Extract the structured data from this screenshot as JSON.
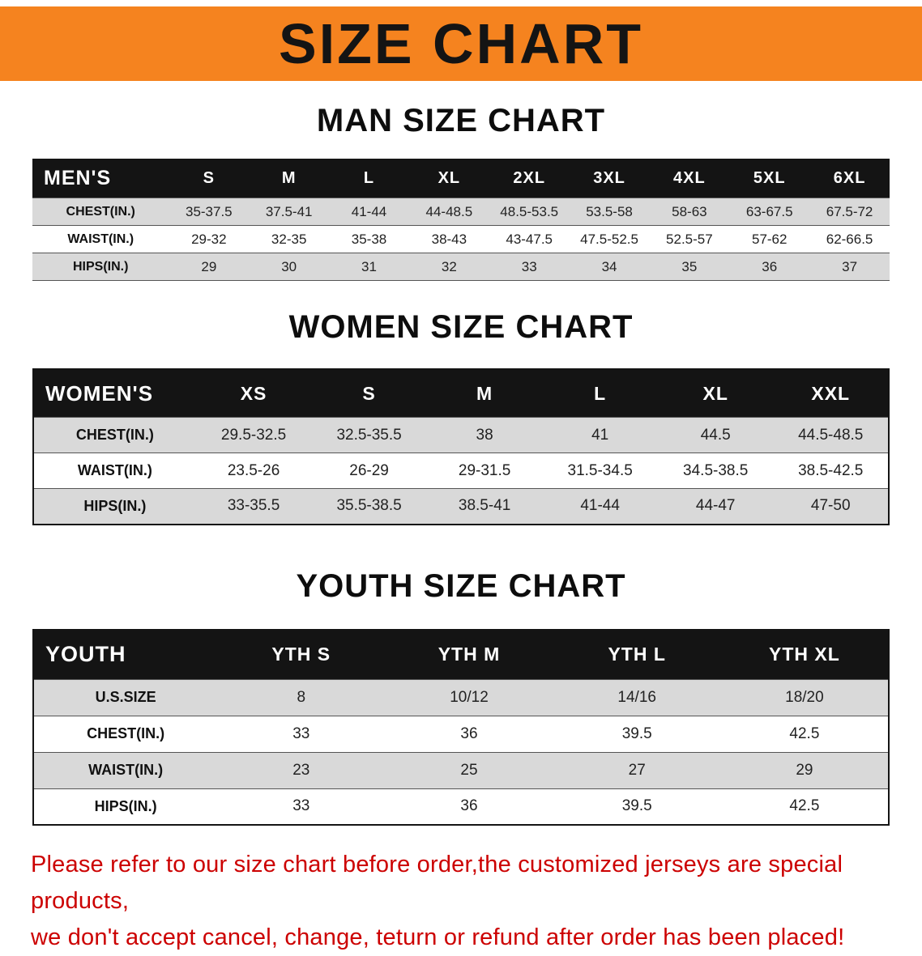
{
  "banner": {
    "title": "SIZE CHART"
  },
  "colors": {
    "banner_bg": "#f5831f",
    "note_red": "#cc0000",
    "header_bg": "#141414",
    "row_shade": "#d9d9d9"
  },
  "sections": {
    "men": {
      "heading": "MAN SIZE CHART",
      "table": {
        "header": [
          "MEN'S",
          "S",
          "M",
          "L",
          "XL",
          "2XL",
          "3XL",
          "4XL",
          "5XL",
          "6XL"
        ],
        "rows": [
          [
            "CHEST(IN.)",
            "35-37.5",
            "37.5-41",
            "41-44",
            "44-48.5",
            "48.5-53.5",
            "53.5-58",
            "58-63",
            "63-67.5",
            "67.5-72"
          ],
          [
            "WAIST(IN.)",
            "29-32",
            "32-35",
            "35-38",
            "38-43",
            "43-47.5",
            "47.5-52.5",
            "52.5-57",
            "57-62",
            "62-66.5"
          ],
          [
            "HIPS(IN.)",
            "29",
            "30",
            "31",
            "32",
            "33",
            "34",
            "35",
            "36",
            "37"
          ]
        ]
      }
    },
    "women": {
      "heading": "WOMEN SIZE CHART",
      "table": {
        "header": [
          "WOMEN'S",
          "XS",
          "S",
          "M",
          "L",
          "XL",
          "XXL"
        ],
        "rows": [
          [
            "CHEST(IN.)",
            "29.5-32.5",
            "32.5-35.5",
            "38",
            "41",
            "44.5",
            "44.5-48.5"
          ],
          [
            "WAIST(IN.)",
            "23.5-26",
            "26-29",
            "29-31.5",
            "31.5-34.5",
            "34.5-38.5",
            "38.5-42.5"
          ],
          [
            "HIPS(IN.)",
            "33-35.5",
            "35.5-38.5",
            "38.5-41",
            "41-44",
            "44-47",
            "47-50"
          ]
        ]
      }
    },
    "youth": {
      "heading": "YOUTH SIZE CHART",
      "table": {
        "header": [
          "YOUTH",
          "YTH S",
          "YTH M",
          "YTH L",
          "YTH XL"
        ],
        "rows": [
          [
            "U.S.SIZE",
            "8",
            "10/12",
            "14/16",
            "18/20"
          ],
          [
            "CHEST(IN.)",
            "33",
            "36",
            "39.5",
            "42.5"
          ],
          [
            "WAIST(IN.)",
            "23",
            "25",
            "27",
            "29"
          ],
          [
            "HIPS(IN.)",
            "33",
            "36",
            "39.5",
            "42.5"
          ]
        ]
      }
    }
  },
  "footnote": {
    "line1": "Please refer to our size chart before order,the customized jerseys are special products,",
    "line2": "we don't accept cancel, change, teturn or refund after order has been placed!"
  }
}
